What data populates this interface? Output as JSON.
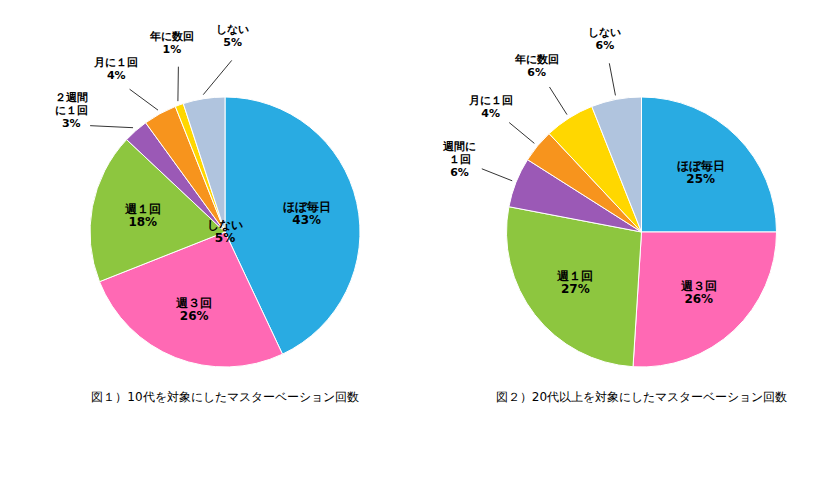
{
  "chart_data": [
    {
      "type": "pie",
      "title": "図１）10代を対象にしたマスターベーション回数",
      "categories": [
        "ほぼ毎日",
        "週３回",
        "週１回",
        "２週間\nに１回",
        "月に１回",
        "年に数回",
        "しない"
      ],
      "values": [
        43,
        26,
        18,
        3,
        4,
        1,
        5
      ],
      "value_labels": [
        "43%",
        "26%",
        "18%",
        "3%",
        "4%",
        "1%",
        "5%"
      ],
      "colors": [
        "#29ABE2",
        "#FF69B4",
        "#8DC63F",
        "#9B59B6",
        "#F7941D",
        "#FFD700",
        "#B0C4DE"
      ],
      "data_labels": true,
      "annotations": [
        {
          "text": "しない\n5%"
        }
      ]
    },
    {
      "type": "pie",
      "title": "図２）20代以上を対象にしたマスターベーション回数",
      "categories": [
        "ほぼ毎日",
        "週３回",
        "週１回",
        "週間に\n１回",
        "月に１回",
        "年に数回",
        "しない"
      ],
      "values": [
        25,
        26,
        27,
        6,
        4,
        6,
        6
      ],
      "value_labels": [
        "25%",
        "26%",
        "27%",
        "6%",
        "4%",
        "6%",
        "6%"
      ],
      "colors": [
        "#29ABE2",
        "#FF69B4",
        "#8DC63F",
        "#9B59B6",
        "#F7941D",
        "#FFD700",
        "#B0C4DE"
      ],
      "data_labels": true
    }
  ]
}
